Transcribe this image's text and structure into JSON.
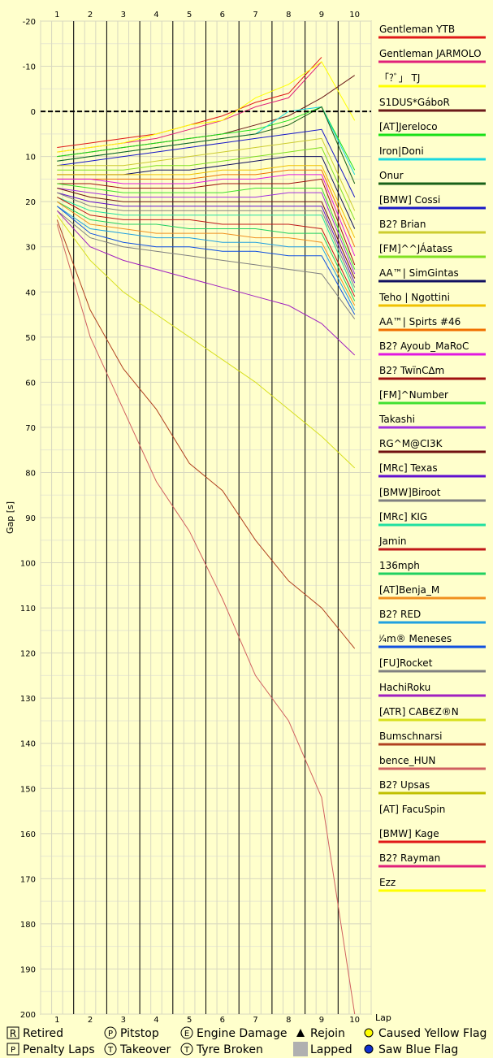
{
  "chart_data": {
    "type": "line",
    "xlabel": "Lap",
    "ylabel": "Gap [s]",
    "x_ticks": [
      "1",
      "2",
      "3",
      "4",
      "5",
      "6",
      "7",
      "8",
      "9",
      "10"
    ],
    "y_ticks": [
      "-20",
      "-10",
      "0",
      "10",
      "20",
      "30",
      "40",
      "50",
      "60",
      "70",
      "80",
      "90",
      "100",
      "110",
      "120",
      "130",
      "140",
      "150",
      "160",
      "170",
      "180",
      "190",
      "200"
    ],
    "ylim": [
      -20,
      200
    ],
    "y_inverted": true,
    "grid": true,
    "legend_position": "right",
    "series": [
      {
        "name": "Gentleman YTB",
        "color": "#e01818",
        "values": [
          8,
          7,
          6,
          5,
          3,
          1,
          -2,
          -4,
          -12,
          null
        ]
      },
      {
        "name": "Gentleman JARMOLO",
        "color": "#e0207a",
        "values": [
          9,
          8,
          7,
          6,
          4,
          2,
          -1,
          -3,
          -11,
          null
        ]
      },
      {
        "name": "「?ﾞ」 TJ",
        "color": "#ffff00",
        "values": [
          9,
          8,
          7,
          5,
          3,
          2,
          -3,
          -6,
          -11,
          2
        ]
      },
      {
        "name": "S1DUS*GáboR",
        "color": "#6b1a1a",
        "values": [
          10,
          9,
          8,
          7,
          6,
          5,
          3,
          1,
          -3,
          -8
        ]
      },
      {
        "name": "[AT]Jereloco",
        "color": "#18e018",
        "values": [
          10,
          9,
          8,
          7,
          6,
          5,
          4,
          2,
          -1,
          13
        ]
      },
      {
        "name": "Iron|Doni",
        "color": "#18d8e0",
        "values": [
          11,
          10,
          9,
          8,
          7,
          6,
          5,
          0,
          -1,
          14
        ]
      },
      {
        "name": "Onur",
        "color": "#186018",
        "values": [
          11,
          10,
          9,
          8,
          7,
          6,
          5,
          3,
          -1,
          16
        ]
      },
      {
        "name": "[BMW] Cossi",
        "color": "#1818c8",
        "values": [
          12,
          11,
          10,
          9,
          8,
          7,
          6,
          5,
          4,
          19
        ]
      },
      {
        "name": "B2? Brian",
        "color": "#cccc30",
        "values": [
          12,
          12,
          12,
          11,
          10,
          9,
          8,
          7,
          6,
          22
        ]
      },
      {
        "name": "[FM]^^JÁatass",
        "color": "#80e020",
        "values": [
          13,
          13,
          13,
          12,
          12,
          11,
          10,
          9,
          8,
          24
        ]
      },
      {
        "name": "AA™| SimGintas",
        "color": "#101060",
        "values": [
          14,
          14,
          14,
          13,
          13,
          12,
          11,
          10,
          10,
          26
        ]
      },
      {
        "name": "Teho | Ngottini",
        "color": "#f0c000",
        "values": [
          14,
          14,
          14,
          14,
          14,
          13,
          13,
          12,
          12,
          28
        ]
      },
      {
        "name": "AA™| Spirts #46",
        "color": "#f07000",
        "values": [
          15,
          15,
          15,
          15,
          15,
          14,
          14,
          13,
          13,
          30
        ]
      },
      {
        "name": "B2? Ayoub_MaRoC",
        "color": "#e018e0",
        "values": [
          15,
          15,
          16,
          16,
          16,
          15,
          15,
          14,
          14,
          32
        ]
      },
      {
        "name": "B2? TwïnC∆m",
        "color": "#a01010",
        "values": [
          16,
          16,
          17,
          17,
          17,
          16,
          16,
          16,
          15,
          34
        ]
      },
      {
        "name": "[FM]^Number",
        "color": "#40e030",
        "values": [
          16,
          17,
          18,
          18,
          18,
          18,
          17,
          17,
          17,
          35
        ]
      },
      {
        "name": "Takashi",
        "color": "#a030e0",
        "values": [
          17,
          18,
          19,
          19,
          19,
          19,
          19,
          18,
          18,
          36
        ]
      },
      {
        "name": "RG^M@CI3K",
        "color": "#701010",
        "values": [
          17,
          19,
          20,
          20,
          20,
          20,
          20,
          20,
          20,
          37
        ]
      },
      {
        "name": "[MRc] Texas",
        "color": "#6010d0",
        "values": [
          18,
          20,
          21,
          21,
          21,
          21,
          21,
          21,
          21,
          38
        ]
      },
      {
        "name": "[BMW]Biroot",
        "color": "#808080",
        "values": [
          18,
          21,
          22,
          22,
          22,
          22,
          22,
          22,
          22,
          39
        ]
      },
      {
        "name": "[MRc] KIG",
        "color": "#20e0a0",
        "values": [
          19,
          22,
          23,
          23,
          23,
          23,
          23,
          23,
          23,
          40
        ]
      },
      {
        "name": "Jamin",
        "color": "#c01818",
        "values": [
          19,
          23,
          24,
          24,
          24,
          25,
          25,
          25,
          26,
          41
        ]
      },
      {
        "name": "136mph",
        "color": "#20d060",
        "values": [
          20,
          24,
          25,
          25,
          26,
          26,
          26,
          27,
          27,
          42
        ]
      },
      {
        "name": "[AT]Benja_M",
        "color": "#f09020",
        "values": [
          20,
          25,
          26,
          27,
          27,
          27,
          28,
          28,
          29,
          43
        ]
      },
      {
        "name": "B2? RED",
        "color": "#20a0e0",
        "values": [
          21,
          26,
          27,
          28,
          28,
          29,
          29,
          30,
          30,
          44
        ]
      },
      {
        "name": "ⁱ⁄₄m® Meneses",
        "color": "#1050e0",
        "values": [
          21,
          27,
          29,
          30,
          30,
          31,
          31,
          32,
          32,
          45
        ]
      },
      {
        "name": "[FU]Rocket",
        "color": "#808080",
        "values": [
          22,
          28,
          30,
          31,
          32,
          33,
          34,
          35,
          36,
          46
        ]
      },
      {
        "name": "HachiRoku",
        "color": "#a020c0",
        "values": [
          22,
          30,
          33,
          35,
          37,
          39,
          41,
          43,
          47,
          54
        ]
      },
      {
        "name": "[ATR] CAB€Z®N",
        "color": "#d8e020",
        "values": [
          23,
          33,
          40,
          45,
          50,
          55,
          60,
          66,
          72,
          79
        ]
      },
      {
        "name": "Bumschnarsi",
        "color": "#b04020",
        "values": [
          24,
          44,
          57,
          66,
          78,
          84,
          95,
          104,
          110,
          119
        ]
      },
      {
        "name": "bence_HUN",
        "color": "#d06060",
        "values": [
          25,
          50,
          66,
          82,
          93,
          108,
          125,
          135,
          152,
          200
        ]
      },
      {
        "name": "B2? Upsas",
        "color": "#c0c000",
        "values": [
          null,
          null,
          null,
          null,
          null,
          null,
          null,
          null,
          null,
          null
        ]
      },
      {
        "name": "[AT] FacuSpin",
        "color": "#ffffcc",
        "values": [
          null,
          null,
          null,
          null,
          null,
          null,
          null,
          null,
          null,
          null
        ]
      },
      {
        "name": "[BMW] Kage",
        "color": "#e01818",
        "values": [
          null,
          null,
          null,
          null,
          null,
          null,
          null,
          null,
          null,
          null
        ]
      },
      {
        "name": "B2? Rayman",
        "color": "#e0207a",
        "values": [
          null,
          null,
          null,
          null,
          null,
          null,
          null,
          null,
          null,
          null
        ]
      },
      {
        "name": "Ezz",
        "color": "#ffff00",
        "values": [
          null,
          null,
          null,
          null,
          null,
          null,
          null,
          null,
          null,
          null
        ]
      }
    ],
    "key": [
      {
        "symbol": "R",
        "label": "Retired"
      },
      {
        "symbol": "P",
        "label": "Pitstop"
      },
      {
        "symbol": "E",
        "label": "Engine Damage"
      },
      {
        "symbol": "▲",
        "label": "Rejoin"
      },
      {
        "symbol": "●",
        "label": "Caused Yellow Flag",
        "color": "#ffff00"
      },
      {
        "symbol": "P",
        "label": "Penalty Laps"
      },
      {
        "symbol": "T",
        "label": "Takeover"
      },
      {
        "symbol": "T",
        "label": "Tyre Broken"
      },
      {
        "symbol": "■",
        "label": "Lapped",
        "color": "#b0b0b0"
      },
      {
        "symbol": "●",
        "label": "Saw Blue Flag",
        "color": "#1030d0"
      }
    ]
  }
}
